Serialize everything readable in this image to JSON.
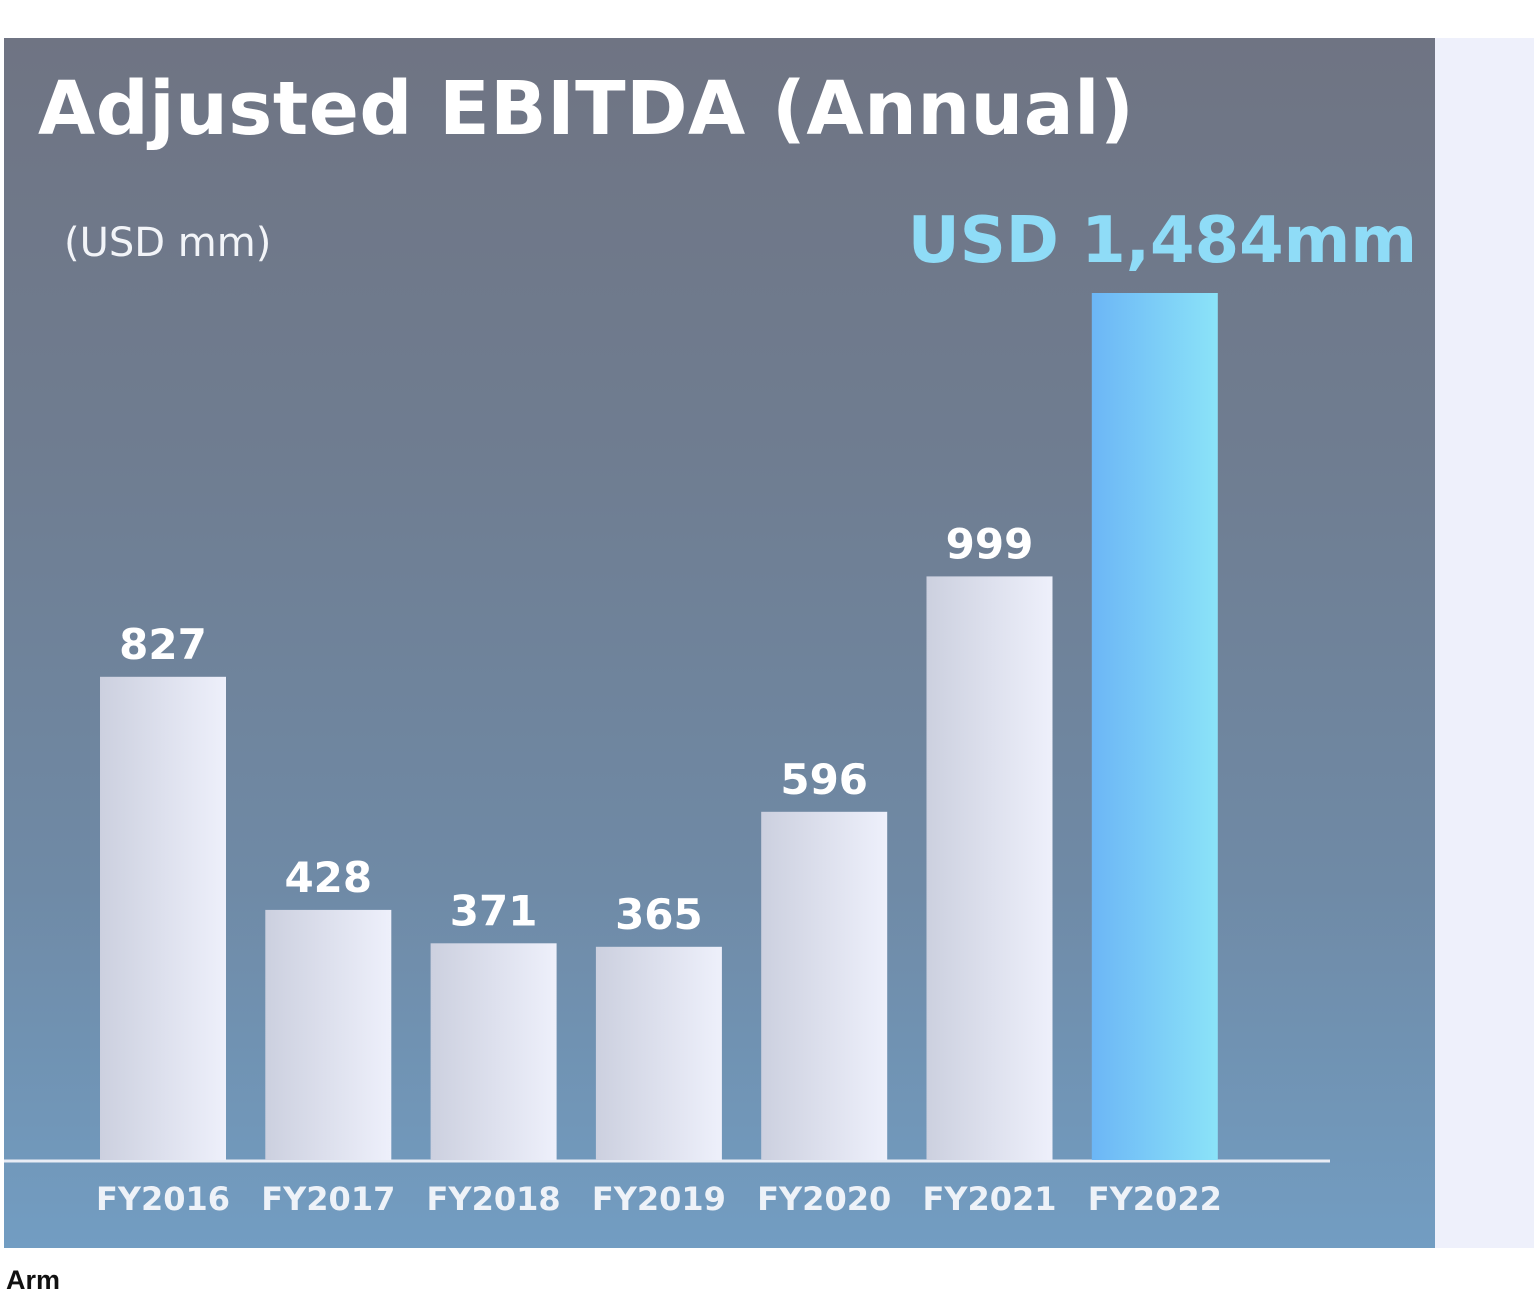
{
  "chart_data": {
    "type": "bar",
    "title": "Adjusted EBITDA (Annual)",
    "unit_label": "(USD mm)",
    "highlight_label": "USD 1,484mm",
    "categories": [
      "FY2016",
      "FY2017",
      "FY2018",
      "FY2019",
      "FY2020",
      "FY2021",
      "FY2022"
    ],
    "values": [
      827,
      428,
      371,
      365,
      596,
      999,
      1484
    ],
    "data_labels": [
      "827",
      "428",
      "371",
      "365",
      "596",
      "999",
      ""
    ],
    "highlighted_category": "FY2022",
    "xlabel": "",
    "ylabel": "",
    "ylim": [
      0,
      1484
    ],
    "grid": false,
    "colors": {
      "bar": "#e4e6f2",
      "bar_highlight": "#7cc8f7",
      "highlight_text": "#8fdcf7",
      "baseline": "#e8ecf5"
    }
  },
  "source": "Arm"
}
